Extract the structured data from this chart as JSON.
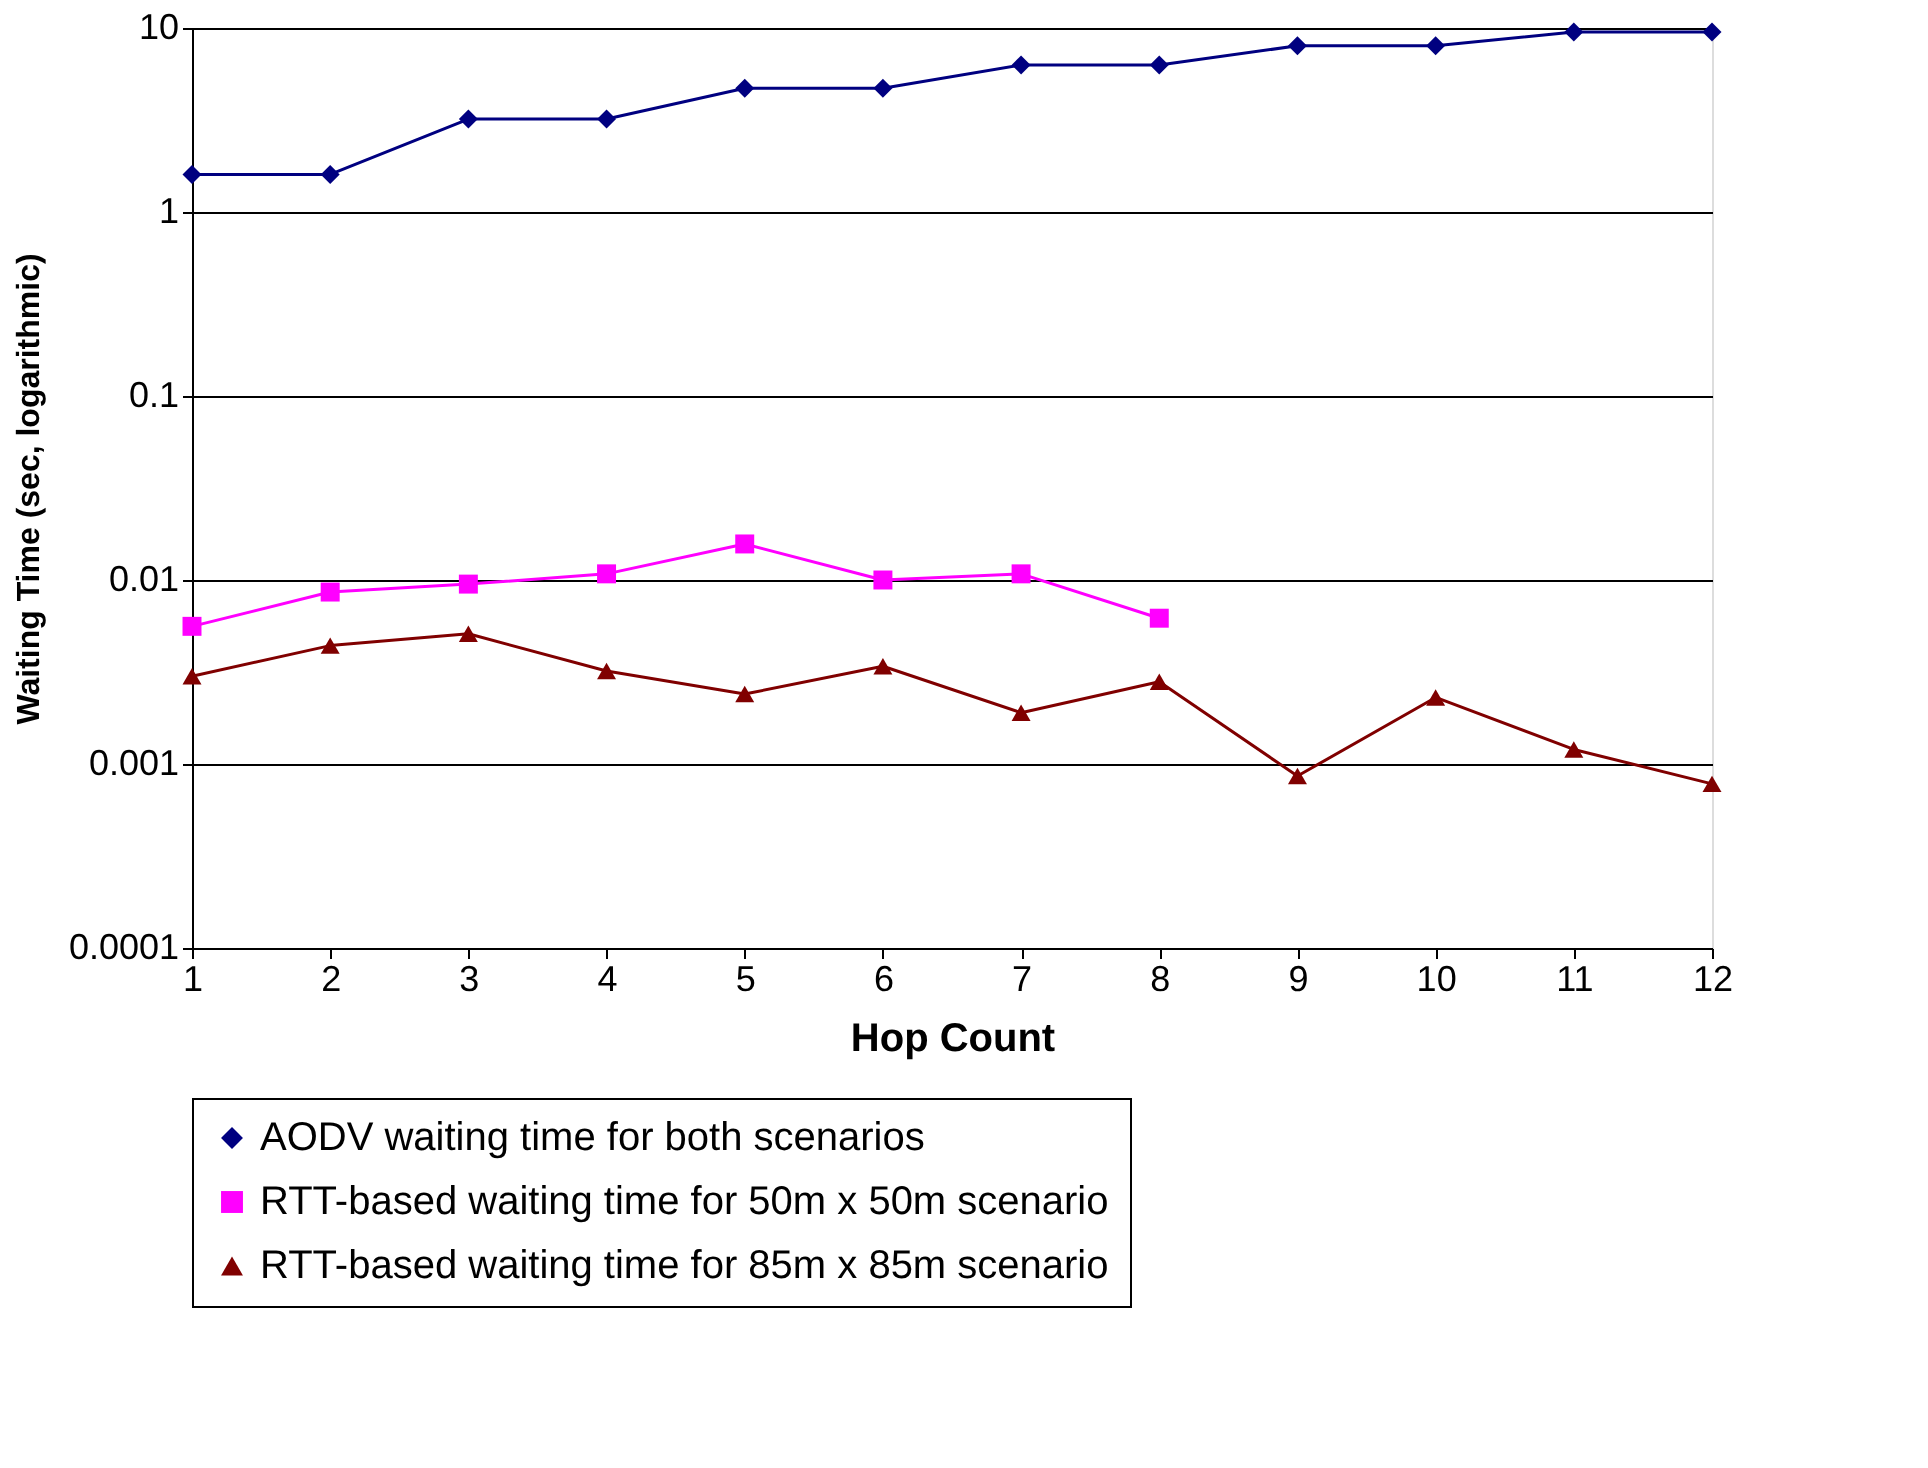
{
  "chart_data": {
    "type": "line",
    "xlabel": "Hop Count",
    "ylabel": "Waiting Time (sec, logarithmic)",
    "x": [
      1,
      2,
      3,
      4,
      5,
      6,
      7,
      8,
      9,
      10,
      11,
      12
    ],
    "series": [
      {
        "name": "AODV waiting time for both scenarios",
        "color": "#000080",
        "marker": "diamond",
        "values": [
          1.6,
          1.6,
          3.2,
          3.2,
          4.7,
          4.7,
          6.3,
          6.3,
          8,
          8,
          9.5,
          9.5
        ]
      },
      {
        "name": "RTT-based waiting time for 50m x 50m scenario",
        "color": "#ff00ff",
        "marker": "square",
        "x": [
          1,
          2,
          3,
          4,
          5,
          6,
          7,
          8
        ],
        "values": [
          0.0056,
          0.0086,
          0.0095,
          0.0108,
          0.0157,
          0.01,
          0.0108,
          0.0062
        ]
      },
      {
        "name": "RTT-based waiting time for 85m x 85m scenario",
        "color": "#800000",
        "marker": "triangle",
        "values": [
          0.003,
          0.0044,
          0.0051,
          0.0032,
          0.0024,
          0.0034,
          0.0019,
          0.0028,
          0.00086,
          0.0023,
          0.0012,
          0.00078
        ]
      }
    ],
    "xlim": [
      1,
      12
    ],
    "xticks": [
      1,
      2,
      3,
      4,
      5,
      6,
      7,
      8,
      9,
      10,
      11,
      12
    ],
    "ylim": [
      0.0001,
      10
    ],
    "yticks": [
      0.0001,
      0.001,
      0.01,
      0.1,
      1,
      10
    ],
    "log": "y",
    "grid": "y",
    "legend": "bottom",
    "line_style": "solid"
  }
}
